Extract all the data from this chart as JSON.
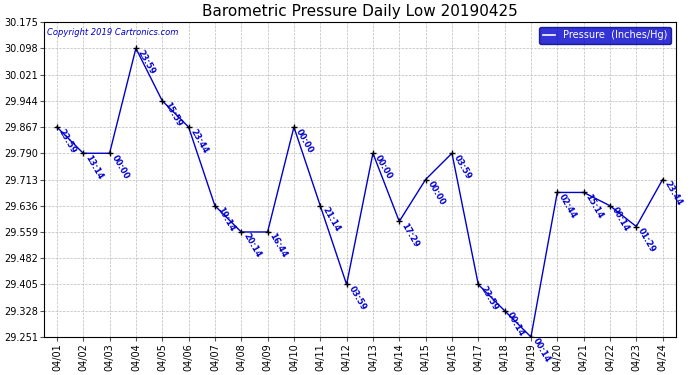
{
  "title": "Barometric Pressure Daily Low 20190425",
  "copyright": "Copyright 2019 Cartronics.com",
  "legend_label": "Pressure  (Inches/Hg)",
  "x_labels": [
    "04/01",
    "04/02",
    "04/03",
    "04/04",
    "04/05",
    "04/06",
    "04/07",
    "04/08",
    "04/09",
    "04/10",
    "04/11",
    "04/12",
    "04/13",
    "04/14",
    "04/15",
    "04/16",
    "04/17",
    "04/18",
    "04/19",
    "04/20",
    "04/21",
    "04/22",
    "04/23",
    "04/24"
  ],
  "x_values": [
    0,
    1,
    2,
    3,
    4,
    5,
    6,
    7,
    8,
    9,
    10,
    11,
    12,
    13,
    14,
    15,
    16,
    17,
    18,
    19,
    20,
    21,
    22,
    23
  ],
  "y_values": [
    29.867,
    29.79,
    29.79,
    30.098,
    29.944,
    29.867,
    29.636,
    29.559,
    29.559,
    29.867,
    29.636,
    29.405,
    29.79,
    29.59,
    29.713,
    29.79,
    29.405,
    29.328,
    29.251,
    29.675,
    29.675,
    29.636,
    29.575,
    29.713
  ],
  "point_labels": [
    "23:59",
    "13:14",
    "00:00",
    "23:59",
    "15:59",
    "23:44",
    "19:14",
    "20:14",
    "16:44",
    "00:00",
    "21:14",
    "03:59",
    "00:00",
    "17:29",
    "00:00",
    "03:59",
    "23:59",
    "00:14",
    "00:14",
    "02:44",
    "15:14",
    "00:14",
    "01:29",
    "23:44"
  ],
  "ylim_min": 29.251,
  "ylim_max": 30.175,
  "ytick_values": [
    29.251,
    29.328,
    29.405,
    29.482,
    29.559,
    29.636,
    29.713,
    29.79,
    29.867,
    29.944,
    30.021,
    30.098,
    30.175
  ],
  "line_color": "#0000CC",
  "marker_color": "#000000",
  "bg_color": "#ffffff",
  "grid_color": "#bbbbbb",
  "label_color": "#0000CC",
  "legend_bg": "#0000CC",
  "legend_text_color": "#ffffff",
  "title_color": "#000000",
  "title_fontsize": 11,
  "tick_fontsize": 7,
  "label_fontsize": 6,
  "fig_width": 6.9,
  "fig_height": 3.75,
  "dpi": 100
}
